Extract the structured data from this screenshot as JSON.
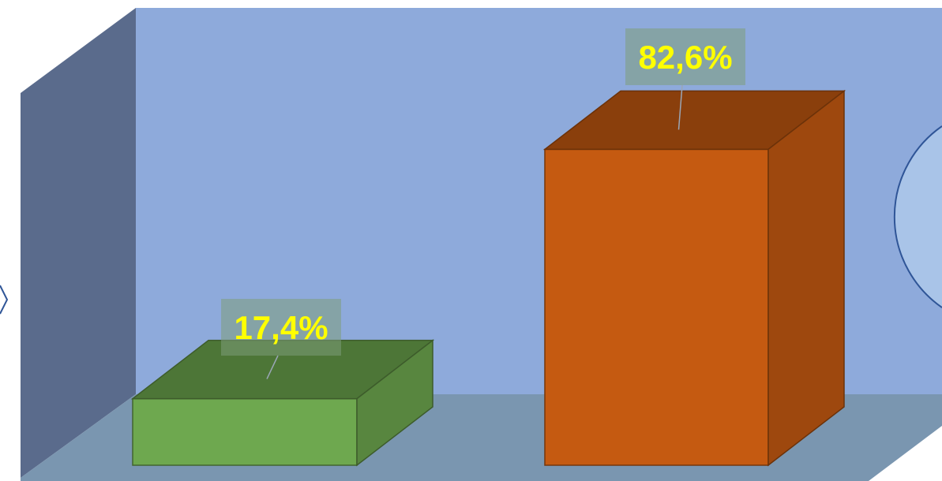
{
  "chart_data": {
    "type": "bar",
    "style": "3d-column",
    "categories": [
      "",
      ""
    ],
    "values": [
      17.4,
      82.6
    ],
    "data_labels": [
      "17,4%",
      "82,6%"
    ],
    "value_unit": "%",
    "ylim": [
      0,
      100
    ],
    "grid": false,
    "legend": "none",
    "colors": {
      "back_wall": "#8eaadb",
      "side_wall": "#5a6b8c",
      "floor": "#7a96b0",
      "bar_1": "#6ea84f",
      "bar_2": "#c55a11",
      "data_label_text": "#ffff00",
      "data_label_box": "#7e9c7a"
    }
  }
}
